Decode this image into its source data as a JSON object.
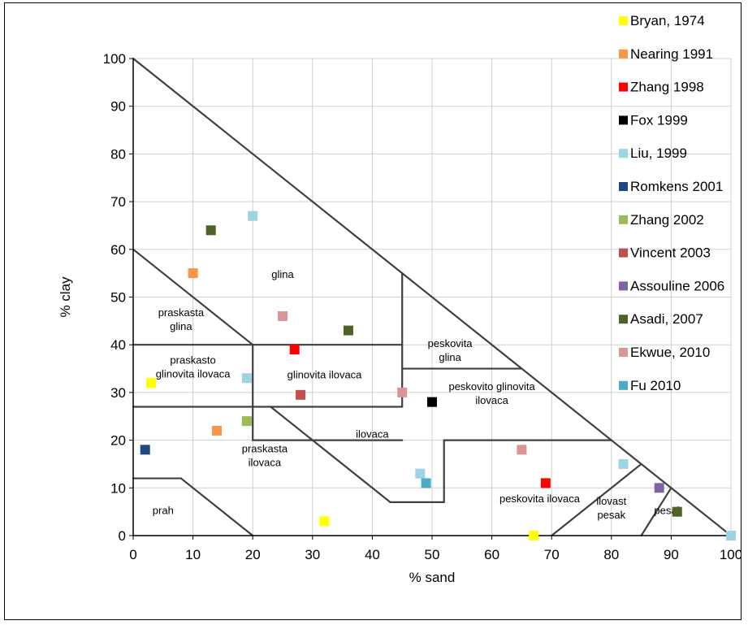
{
  "chart_data": {
    "type": "scatter",
    "title": "",
    "xlabel": "% sand",
    "ylabel": "% clay",
    "xlim": [
      0,
      100
    ],
    "ylim": [
      0,
      100
    ],
    "x_ticks": [
      "0",
      "10",
      "20",
      "30",
      "40",
      "50",
      "60",
      "70",
      "80",
      "90",
      "100"
    ],
    "y_ticks": [
      "0",
      "10",
      "20",
      "30",
      "40",
      "50",
      "60",
      "70",
      "80",
      "90",
      "100"
    ],
    "grid": true,
    "legend_position": "right",
    "regions": [
      {
        "name": "glina",
        "lines": [
          "glina"
        ]
      },
      {
        "name": "praskasta glina",
        "lines": [
          "praskasta",
          "glina"
        ]
      },
      {
        "name": "praskasto glinovita ilovaca",
        "lines": [
          "praskasto",
          "glinovita ilovaca"
        ]
      },
      {
        "name": "glinovita ilovaca",
        "lines": [
          "glinovita ilovaca"
        ]
      },
      {
        "name": "peskovita glina",
        "lines": [
          "peskovita",
          "glina"
        ]
      },
      {
        "name": "peskovito glinovita ilovaca",
        "lines": [
          "peskovito glinovita",
          "ilovaca"
        ]
      },
      {
        "name": "ilovaca",
        "lines": [
          "ilovaca"
        ]
      },
      {
        "name": "praskasta ilovaca",
        "lines": [
          "praskasta",
          "ilovaca"
        ]
      },
      {
        "name": "prah",
        "lines": [
          "prah"
        ]
      },
      {
        "name": "peskovita ilovaca",
        "lines": [
          "peskovita ilovaca"
        ]
      },
      {
        "name": "ilovast pesak",
        "lines": [
          "ilovast",
          "pesak"
        ]
      },
      {
        "name": "pesak",
        "lines": [
          "pesak"
        ]
      }
    ],
    "series": [
      {
        "name": "Bryan, 1974",
        "color": "#ffff00",
        "points": [
          [
            3,
            32
          ],
          [
            32,
            3
          ],
          [
            67,
            0
          ]
        ]
      },
      {
        "name": "Nearing 1991",
        "color": "#f79646",
        "points": [
          [
            10,
            55
          ],
          [
            14,
            22
          ]
        ]
      },
      {
        "name": "Zhang 1998",
        "color": "#ff0000",
        "points": [
          [
            27,
            39
          ],
          [
            69,
            11
          ]
        ]
      },
      {
        "name": "Fox 1999",
        "color": "#000000",
        "points": [
          [
            50,
            28
          ]
        ]
      },
      {
        "name": "Liu, 1999",
        "color": "#9dd3e3",
        "points": [
          [
            20,
            67
          ],
          [
            19,
            33
          ],
          [
            48,
            13
          ],
          [
            82,
            15
          ],
          [
            100,
            0
          ]
        ]
      },
      {
        "name": "Romkens 2001",
        "color": "#1f497d",
        "points": [
          [
            2,
            18
          ]
        ]
      },
      {
        "name": "Zhang 2002",
        "color": "#9bbb59",
        "points": [
          [
            19,
            24
          ]
        ]
      },
      {
        "name": "Vincent 2003",
        "color": "#c0504d",
        "points": [
          [
            28,
            29.5
          ]
        ]
      },
      {
        "name": "Assouline 2006",
        "color": "#8064a2",
        "points": [
          [
            88,
            10
          ]
        ]
      },
      {
        "name": "Asadi, 2007",
        "color": "#4f6228",
        "points": [
          [
            13,
            64
          ],
          [
            36,
            43
          ],
          [
            91,
            5
          ]
        ]
      },
      {
        "name": "Ekwue, 2010",
        "color": "#d99694",
        "points": [
          [
            25,
            46
          ],
          [
            45,
            30
          ],
          [
            65,
            18
          ]
        ]
      },
      {
        "name": "Fu 2010",
        "color": "#4bacc6",
        "points": [
          [
            49,
            11
          ]
        ]
      }
    ]
  }
}
